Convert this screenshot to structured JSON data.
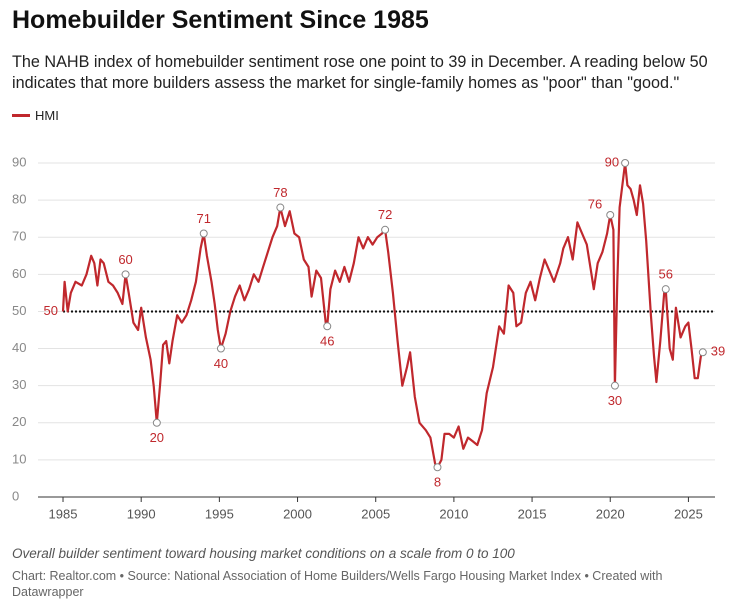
{
  "chart_data": {
    "type": "line",
    "title": "Homebuilder Sentiment Since 1985",
    "subtitle": "The NAHB index of homebuilder sentiment rose one point to 39 in December. A reading below 50 indicates that more builders assess the market for single-family homes as \"poor\" than \"good.\"",
    "note": "Overall builder sentiment toward housing market conditions on a scale from 0 to 100",
    "source": "Chart: Realtor.com • Source: National Association of Home Builders/Wells Fargo Housing Market Index • Created with Datawrapper",
    "x": [
      1985.0,
      1985.1,
      1985.3,
      1985.5,
      1985.8,
      1986.2,
      1986.5,
      1986.8,
      1987.0,
      1987.2,
      1987.4,
      1987.6,
      1987.9,
      1988.2,
      1988.5,
      1988.8,
      1989.0,
      1989.2,
      1989.5,
      1989.8,
      1990.0,
      1990.3,
      1990.6,
      1990.8,
      1991.0,
      1991.2,
      1991.4,
      1991.6,
      1991.8,
      1992.0,
      1992.3,
      1992.6,
      1992.9,
      1993.2,
      1993.5,
      1993.8,
      1994.0,
      1994.2,
      1994.5,
      1994.7,
      1994.9,
      1995.1,
      1995.4,
      1995.7,
      1996.0,
      1996.3,
      1996.6,
      1996.9,
      1997.2,
      1997.5,
      1997.8,
      1998.1,
      1998.4,
      1998.7,
      1998.9,
      1999.2,
      1999.5,
      1999.8,
      2000.1,
      2000.4,
      2000.7,
      2000.9,
      2001.2,
      2001.5,
      2001.8,
      2001.9,
      2002.1,
      2002.4,
      2002.7,
      2003.0,
      2003.3,
      2003.6,
      2003.9,
      2004.2,
      2004.5,
      2004.8,
      2005.1,
      2005.4,
      2005.6,
      2005.8,
      2006.1,
      2006.4,
      2006.7,
      2007.0,
      2007.2,
      2007.5,
      2007.8,
      2008.2,
      2008.5,
      2008.8,
      2008.95,
      2009.2,
      2009.4,
      2009.7,
      2010.0,
      2010.3,
      2010.6,
      2010.9,
      2011.2,
      2011.5,
      2011.8,
      2012.1,
      2012.5,
      2012.9,
      2013.2,
      2013.5,
      2013.8,
      2014.0,
      2014.3,
      2014.6,
      2014.9,
      2015.2,
      2015.5,
      2015.8,
      2016.1,
      2016.4,
      2016.8,
      2017.0,
      2017.3,
      2017.6,
      2017.9,
      2018.2,
      2018.5,
      2018.8,
      2018.95,
      2019.2,
      2019.5,
      2019.8,
      2020.0,
      2020.2,
      2020.3,
      2020.45,
      2020.6,
      2020.8,
      2020.95,
      2021.1,
      2021.3,
      2021.5,
      2021.7,
      2021.9,
      2022.1,
      2022.3,
      2022.6,
      2022.8,
      2022.95,
      2023.2,
      2023.45,
      2023.55,
      2023.8,
      2024.0,
      2024.2,
      2024.5,
      2024.8,
      2025.0,
      2025.2,
      2025.4,
      2025.6,
      2025.8,
      2025.92
    ],
    "series": [
      {
        "name": "HMI",
        "color": "#c0282d",
        "values": [
          50,
          58,
          50,
          55,
          58,
          57,
          60,
          65,
          63,
          57,
          64,
          63,
          58,
          57,
          55,
          52,
          60,
          55,
          47,
          45,
          51,
          43,
          37,
          30,
          20,
          30,
          41,
          42,
          36,
          42,
          49,
          47,
          49,
          53,
          58,
          67,
          71,
          65,
          58,
          52,
          45,
          40,
          44,
          50,
          54,
          57,
          53,
          56,
          60,
          58,
          62,
          66,
          70,
          73,
          78,
          73,
          77,
          71,
          70,
          64,
          62,
          54,
          61,
          59,
          47,
          46,
          56,
          61,
          58,
          62,
          58,
          63,
          70,
          67,
          70,
          68,
          70,
          71,
          72,
          66,
          55,
          42,
          30,
          35,
          39,
          27,
          20,
          18,
          16,
          9,
          8,
          10,
          17,
          17,
          16,
          19,
          13,
          16,
          15,
          14,
          18,
          28,
          35,
          46,
          44,
          57,
          55,
          46,
          47,
          55,
          58,
          53,
          59,
          64,
          61,
          58,
          63,
          67,
          70,
          64,
          74,
          71,
          68,
          60,
          56,
          63,
          66,
          71,
          76,
          72,
          30,
          58,
          78,
          85,
          90,
          84,
          83,
          80,
          76,
          84,
          79,
          69,
          49,
          38,
          31,
          42,
          55,
          56,
          40,
          37,
          51,
          43,
          46,
          47,
          40,
          32,
          32,
          38,
          39
        ]
      }
    ],
    "annotations": [
      {
        "x": 1989.0,
        "value": 60
      },
      {
        "x": 1991.0,
        "value": 20
      },
      {
        "x": 1994.0,
        "value": 71
      },
      {
        "x": 1995.1,
        "value": 40
      },
      {
        "x": 1998.9,
        "value": 78
      },
      {
        "x": 2001.9,
        "value": 46
      },
      {
        "x": 2005.6,
        "value": 72
      },
      {
        "x": 2008.95,
        "value": 8
      },
      {
        "x": 2020.0,
        "value": 76
      },
      {
        "x": 2020.3,
        "value": 30
      },
      {
        "x": 2020.95,
        "value": 90
      },
      {
        "x": 2023.55,
        "value": 56
      },
      {
        "x": 2025.92,
        "value": 39
      }
    ],
    "reference_line": 50,
    "xlim": [
      1983.4,
      2026.7
    ],
    "xticks": [
      1985,
      1990,
      1995,
      2000,
      2005,
      2010,
      2015,
      2020,
      2025
    ],
    "ylim": [
      0,
      90
    ],
    "yticks": [
      0,
      10,
      20,
      30,
      40,
      50,
      60,
      70,
      80,
      90
    ],
    "grid": true
  }
}
